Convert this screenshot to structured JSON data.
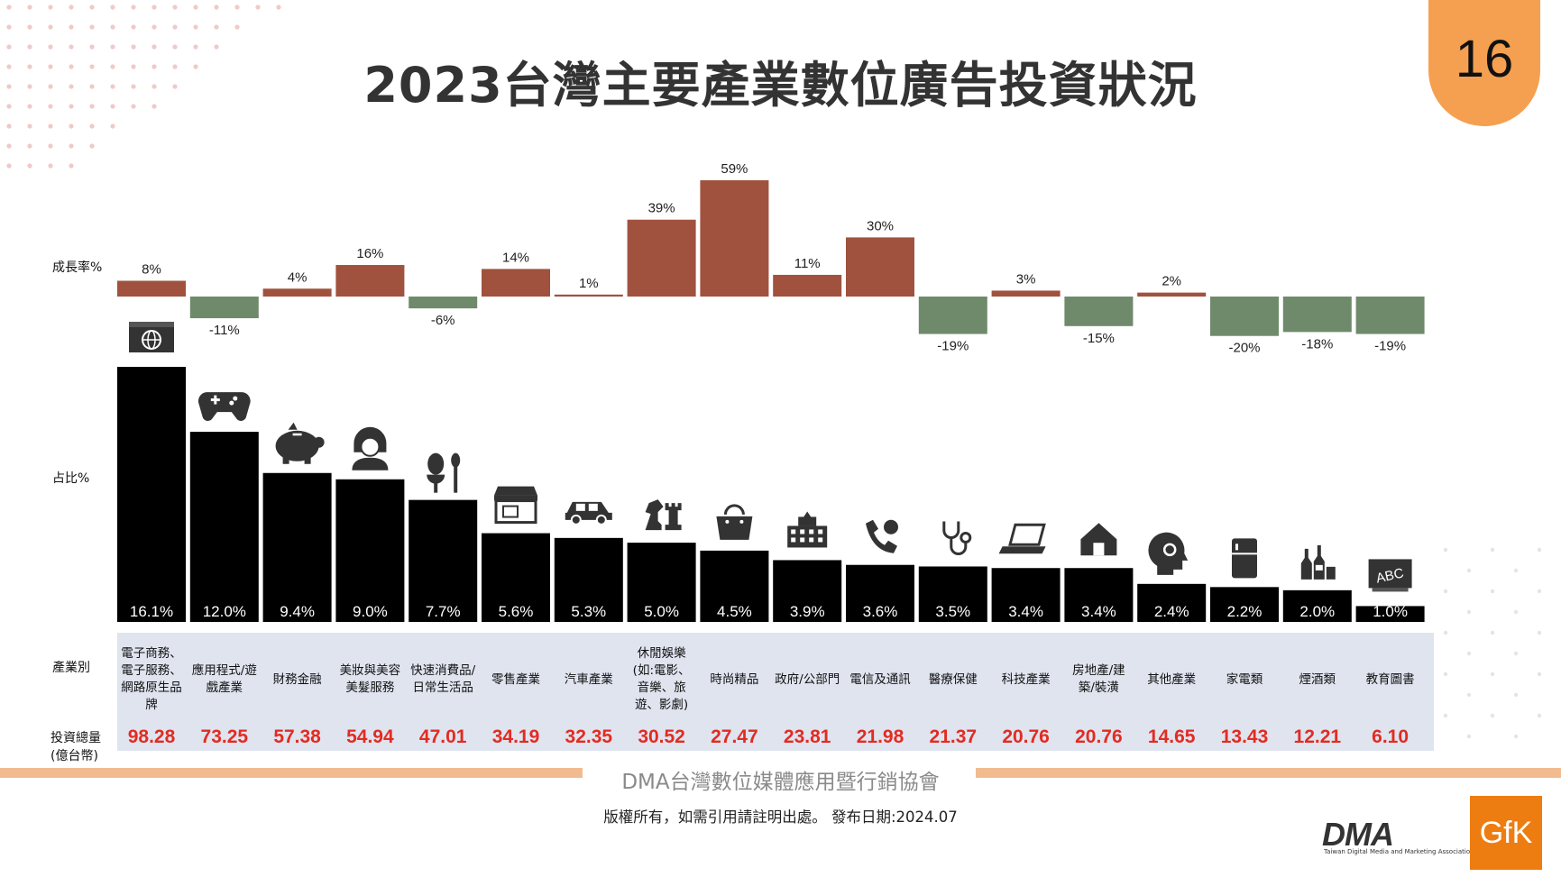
{
  "title": "2023台灣主要產業數位廣告投資狀況",
  "page_number": "16",
  "labels": {
    "growth": "成長率%",
    "share": "占比%",
    "industry": "產業別",
    "investment_line1": "投資總量",
    "investment_line2": "(億台幣)"
  },
  "colors": {
    "positive": "#a0523e",
    "negative": "#6f8a6b",
    "share_bar": "#000000",
    "value_text": "#e32b21",
    "accent": "#f4a050"
  },
  "chart_data": {
    "type": "bar",
    "title": "2023台灣主要產業數位廣告投資狀況",
    "categories": [
      [
        "電子商務、",
        "電子服務、",
        "網路原生品",
        "牌"
      ],
      [
        "應用程式/遊",
        "戲產業"
      ],
      [
        "財務金融"
      ],
      [
        "美妝與美容",
        "美髮服務"
      ],
      [
        "快速消費品/",
        "日常生活品"
      ],
      [
        "零售產業"
      ],
      [
        "汽車產業"
      ],
      [
        "休閒娛樂",
        "(如:電影、",
        "音樂、旅",
        "遊、影劇)"
      ],
      [
        "時尚精品"
      ],
      [
        "政府/公部門"
      ],
      [
        "電信及通訊"
      ],
      [
        "醫療保健"
      ],
      [
        "科技產業"
      ],
      [
        "房地產/建",
        "築/裝潢"
      ],
      [
        "其他產業"
      ],
      [
        "家電類"
      ],
      [
        "煙酒類"
      ],
      [
        "教育圖書"
      ]
    ],
    "series": [
      {
        "name": "成長率%",
        "values": [
          8,
          -11,
          4,
          16,
          -6,
          14,
          1,
          39,
          59,
          11,
          30,
          -19,
          3,
          -15,
          2,
          -20,
          -18,
          -19
        ],
        "labels": [
          "8%",
          "-11%",
          "4%",
          "16%",
          "-6%",
          "14%",
          "1%",
          "39%",
          "59%",
          "11%",
          "30%",
          "-19%",
          "3%",
          "-15%",
          "2%",
          "-20%",
          "-18%",
          "-19%"
        ]
      },
      {
        "name": "占比%",
        "values": [
          16.1,
          12.0,
          9.4,
          9.0,
          7.7,
          5.6,
          5.3,
          5.0,
          4.5,
          3.9,
          3.6,
          3.5,
          3.4,
          3.4,
          2.4,
          2.2,
          2.0,
          1.0
        ],
        "labels": [
          "16.1%",
          "12.0%",
          "9.4%",
          "9.0%",
          "7.7%",
          "5.6%",
          "5.3%",
          "5.0%",
          "4.5%",
          "3.9%",
          "3.6%",
          "3.5%",
          "3.4%",
          "3.4%",
          "2.4%",
          "2.2%",
          "2.0%",
          "1.0%"
        ]
      },
      {
        "name": "投資總量(億台幣)",
        "values": [
          98.28,
          73.25,
          57.38,
          54.94,
          47.01,
          34.19,
          32.35,
          30.52,
          27.47,
          23.81,
          21.98,
          21.37,
          20.76,
          20.76,
          14.65,
          13.43,
          12.21,
          6.1
        ],
        "labels": [
          "98.28",
          "73.25",
          "57.38",
          "54.94",
          "47.01",
          "34.19",
          "32.35",
          "30.52",
          "27.47",
          "23.81",
          "21.98",
          "21.37",
          "20.76",
          "20.76",
          "14.65",
          "13.43",
          "12.21",
          "6.10"
        ]
      }
    ],
    "icons": [
      "globe-icon",
      "gamepad-icon",
      "piggy-bank-icon",
      "woman-icon",
      "food-icon",
      "shop-icon",
      "car-icon",
      "chess-icon",
      "handbag-icon",
      "government-building-icon",
      "phone-icon",
      "stethoscope-icon",
      "laptop-icon",
      "house-icon",
      "gears-head-icon",
      "fridge-icon",
      "bottles-icon",
      "abc-board-icon"
    ],
    "xlabel": "產業別",
    "ylabel": "占比%",
    "growth_range": [
      -20,
      59
    ],
    "share_range": [
      0,
      16.1
    ]
  },
  "footer": {
    "organization": "DMA台灣數位媒體應用暨行銷協會",
    "note": "版權所有，如需引用請註明出處。 發布日期:2024.07",
    "logo_dma_text": "DMA",
    "logo_dma_subtitle": "Taiwan Digital Media and Marketing Association",
    "logo_gfk_text": "GfK"
  }
}
